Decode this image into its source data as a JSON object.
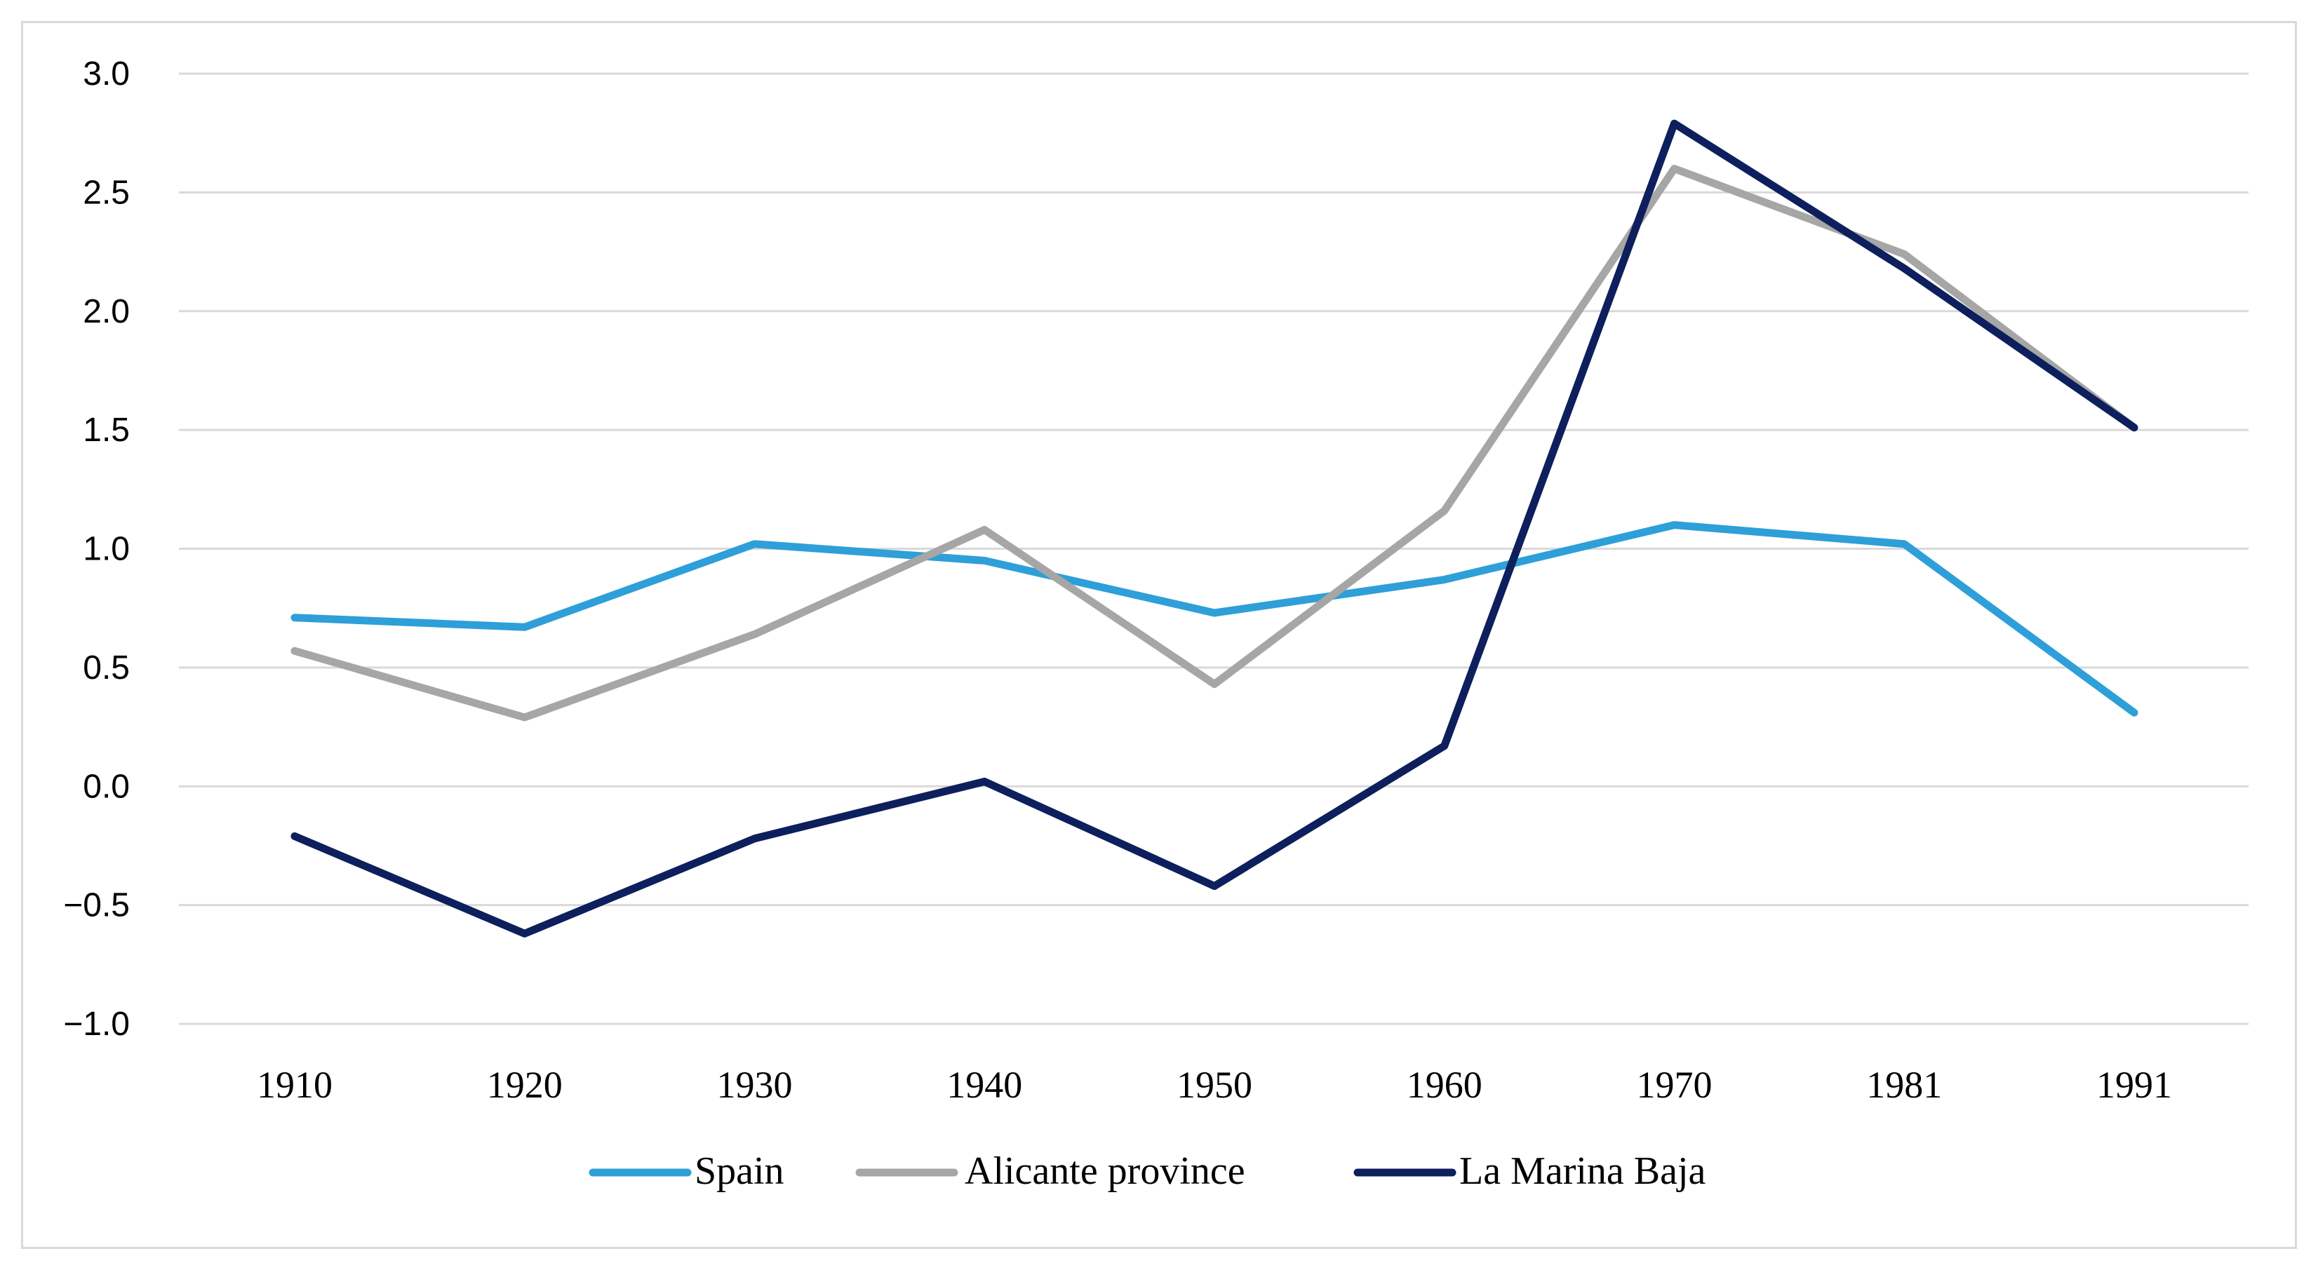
{
  "chart_data": {
    "type": "line",
    "title": "",
    "xlabel": "",
    "ylabel": "",
    "ylim": [
      -1.0,
      3.0
    ],
    "yticks": [
      3.0,
      2.5,
      2.0,
      1.5,
      1.0,
      0.5,
      0.0,
      -0.5,
      -1.0
    ],
    "ytick_labels": [
      "3.0",
      "2.5",
      "2.0",
      "1.5",
      "1.0",
      "0.5",
      "0.0",
      "−0.5",
      "−1.0"
    ],
    "categories": [
      "1910",
      "1920",
      "1930",
      "1940",
      "1950",
      "1960",
      "1970",
      "1981",
      "1991"
    ],
    "grid": true,
    "legend_position": "bottom",
    "series": [
      {
        "name": "Spain",
        "color": "#2e9fd8",
        "values": [
          0.71,
          0.67,
          1.02,
          0.95,
          0.73,
          0.87,
          1.1,
          1.02,
          0.31
        ]
      },
      {
        "name": "Alicante province",
        "color": "#a6a6a6",
        "values": [
          0.57,
          0.29,
          0.64,
          1.08,
          0.43,
          1.16,
          2.6,
          2.24,
          1.51
        ]
      },
      {
        "name": "La Marina Baja",
        "color": "#0d1f5c",
        "values": [
          -0.21,
          -0.62,
          -0.22,
          0.02,
          -0.42,
          0.17,
          2.79,
          2.18,
          1.51
        ]
      }
    ]
  }
}
